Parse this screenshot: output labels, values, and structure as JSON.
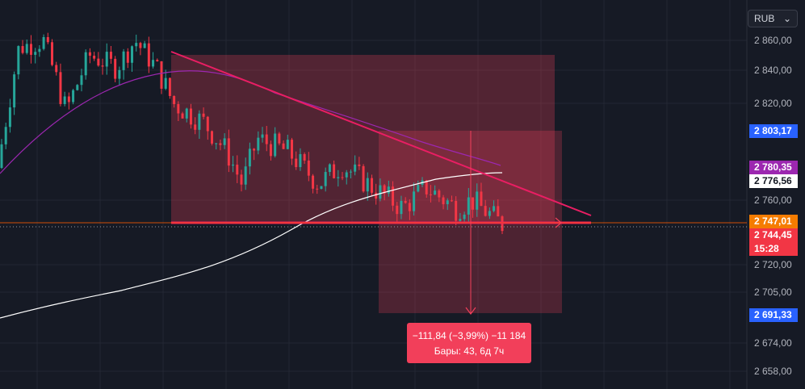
{
  "chart_data": {
    "type": "candlestick",
    "currency": "RUB",
    "y_axis_ticks": [
      "2 860,00",
      "2 840,00",
      "2 820,00",
      "2 760,00",
      "2 720,00",
      "2 705,00",
      "2 674,00",
      "2 658,00"
    ],
    "y_axis_tick_values": [
      2860,
      2840,
      2820,
      2760,
      2720,
      2705,
      2674,
      2658
    ],
    "price_labels": [
      {
        "text": "2 803,17",
        "color": "#2962ff",
        "text_color": "#ffffff",
        "value": 2803.17
      },
      {
        "text": "2 780,35",
        "color": "#9c27b0",
        "text_color": "#ffffff",
        "value": 2780.35
      },
      {
        "text": "2 776,56",
        "color": "#ffffff",
        "text_color": "#131722",
        "value": 2776.56
      },
      {
        "text": "2 747,01",
        "color": "#f57c00",
        "text_color": "#ffffff",
        "value": 2747.01
      },
      {
        "text": "2 744,45",
        "color": "#f23645",
        "text_color": "#ffffff",
        "value": 2744.45
      },
      {
        "text": "15:28",
        "color": "#f23645",
        "text_color": "#ffffff",
        "value": null
      },
      {
        "text": "2 691,33",
        "color": "#2962ff",
        "text_color": "#ffffff",
        "value": 2691.33
      }
    ],
    "measurement": {
      "line1": "−111,84 (−3,99%) −11 184",
      "line2": "Бары: 43, 6д 7ч"
    },
    "colors": {
      "up": "#26a69a",
      "down": "#f23645",
      "ma_short": "#9c27b0",
      "ma_long": "#ffffff",
      "trendline": "#e91e63"
    }
  }
}
